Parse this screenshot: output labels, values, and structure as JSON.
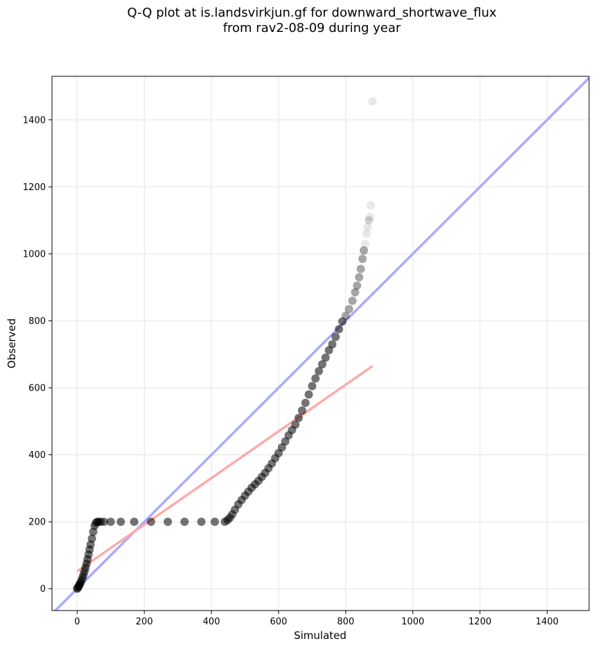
{
  "chart_data": {
    "type": "scatter",
    "title_line1": "Q-Q plot at is.landsvirkjun.gf for downward_shortwave_flux",
    "title_line2": "from rav2-08-09 during year",
    "xlabel": "Simulated",
    "ylabel": "Observed",
    "xlim": [
      -75,
      1525
    ],
    "ylim": [
      -65,
      1530
    ],
    "xticks": [
      0,
      200,
      400,
      600,
      800,
      1000,
      1200,
      1400
    ],
    "yticks": [
      0,
      200,
      400,
      600,
      800,
      1000,
      1200,
      1400
    ],
    "grid": true,
    "colors": {
      "points": "#000000",
      "identity_line": "#aaaaff",
      "fit_line": "#ffaaaa",
      "grid": "#e8e8e8"
    },
    "identity_line": {
      "x": [
        -75,
        1525
      ],
      "y": [
        -75,
        1525
      ]
    },
    "fit_line": {
      "x": [
        0,
        880
      ],
      "y": [
        52,
        665
      ]
    },
    "series": [
      {
        "x": [
          0,
          2,
          4,
          6,
          8,
          10,
          13,
          16,
          19,
          22,
          25,
          28,
          31,
          34,
          37,
          40,
          44,
          48,
          52,
          56,
          60,
          64,
          70,
          80,
          100,
          130,
          170,
          220,
          270,
          320,
          370,
          410,
          440,
          448,
          455,
          462,
          470,
          480,
          490,
          500,
          510,
          520,
          530,
          540,
          550,
          560,
          570,
          580,
          590,
          600,
          610,
          620,
          630,
          640,
          650,
          660,
          670,
          680,
          690,
          700,
          710,
          720,
          730,
          740,
          750,
          760,
          770,
          780,
          790,
          800,
          810,
          820,
          828,
          834,
          840,
          845,
          850,
          854,
          858,
          862,
          865,
          868,
          870,
          872,
          875,
          880
        ],
        "y": [
          0,
          3,
          6,
          10,
          14,
          18,
          25,
          33,
          42,
          52,
          63,
          75,
          88,
          102,
          117,
          132,
          150,
          170,
          188,
          197,
          200,
          200,
          200,
          200,
          200,
          200,
          200,
          200,
          200,
          200,
          200,
          200,
          200,
          205,
          212,
          222,
          236,
          252,
          265,
          278,
          290,
          302,
          312,
          322,
          334,
          346,
          360,
          374,
          390,
          405,
          422,
          440,
          458,
          474,
          490,
          510,
          532,
          555,
          580,
          605,
          628,
          650,
          670,
          690,
          712,
          730,
          752,
          775,
          798,
          815,
          835,
          860,
          885,
          905,
          930,
          955,
          985,
          1010,
          1030,
          1060,
          1080,
          1100,
          1100,
          1110,
          1145,
          1455
        ]
      }
    ]
  }
}
